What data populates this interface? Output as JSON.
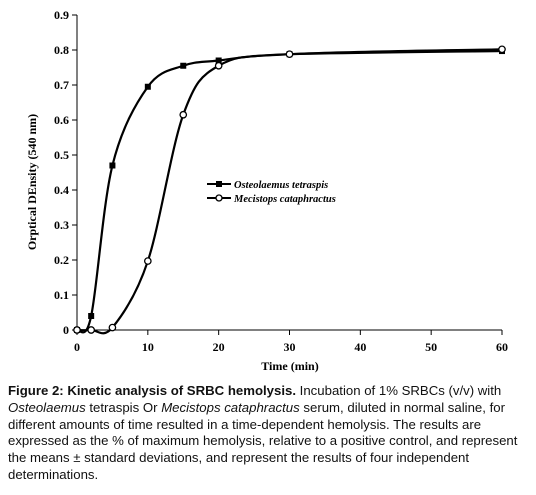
{
  "chart_data": {
    "type": "line",
    "title": "",
    "xlabel": "Time (min)",
    "ylabel": "Orptical DEnsity (540 nm)",
    "xlim": [
      0,
      60
    ],
    "ylim": [
      0,
      0.9
    ],
    "x_ticks": [
      "0",
      "10",
      "20",
      "30",
      "40",
      "50",
      "60"
    ],
    "y_ticks": [
      "0",
      "0.1",
      "0.2",
      "0.3",
      "0.4",
      "0.5",
      "0.6",
      "0.7",
      "0.8",
      "0.9"
    ],
    "grid": false,
    "legend_position": "middle-left",
    "series": [
      {
        "name": "Osteolaemus tetraspis",
        "marker": "filled-square",
        "color": "#000000",
        "x": [
          0,
          2,
          5,
          10,
          15,
          20,
          30,
          60
        ],
        "y": [
          0.0,
          0.04,
          0.47,
          0.695,
          0.755,
          0.77,
          0.788,
          0.797
        ]
      },
      {
        "name": "Mecistops cataphractus",
        "marker": "open-circle",
        "color": "#000000",
        "x": [
          0,
          2,
          5,
          10,
          15,
          20,
          30,
          60
        ],
        "y": [
          0.0,
          0.0,
          0.007,
          0.197,
          0.615,
          0.755,
          0.788,
          0.802
        ]
      }
    ]
  },
  "caption": {
    "label": "Figure 2: Kinetic analysis of SRBC hemolysis.",
    "part1": " Incubation of 1% SRBCs (v/v) with ",
    "species1": "Osteolaemus",
    "part2": " tetraspis Or ",
    "species2": "Mecistops cataphractus",
    "part3": " serum, diluted in normal saline, for different amounts of time resulted in a time-dependent hemolysis.  The results are expressed as the % of maximum hemolysis, relative to a positive control, and represent the means ± standard deviations, and represent the results of four independent determinations."
  }
}
